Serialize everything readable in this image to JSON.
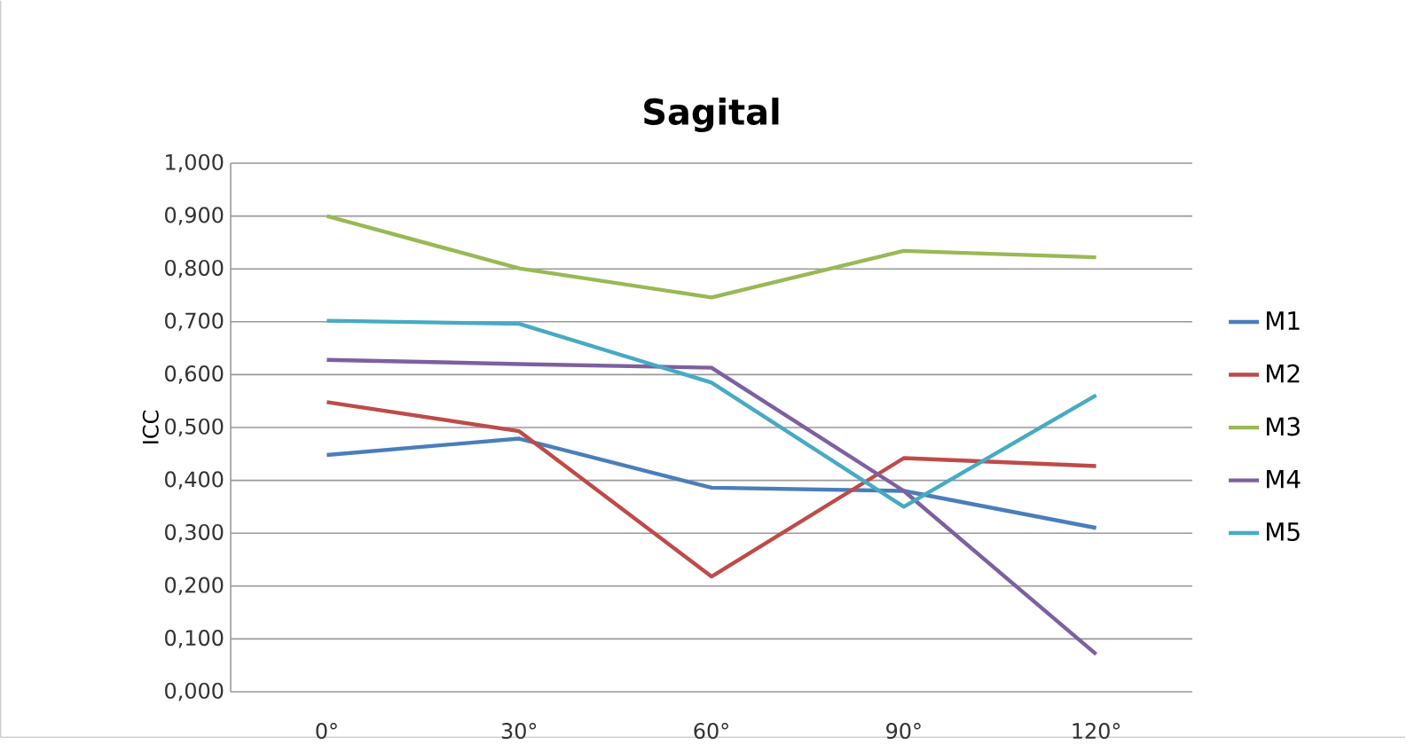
{
  "chart_data": {
    "type": "line",
    "title": "Sagital",
    "ylabel": "ICC",
    "categories": [
      "0°",
      "30°",
      "60°",
      "90°",
      "120°"
    ],
    "series": [
      {
        "name": "M1",
        "color": "#4a7ebb",
        "values": [
          0.448,
          0.479,
          0.386,
          0.38,
          0.31
        ]
      },
      {
        "name": "M2",
        "color": "#be4b48",
        "values": [
          0.548,
          0.493,
          0.218,
          0.442,
          0.427
        ]
      },
      {
        "name": "M3",
        "color": "#98b954",
        "values": [
          0.9,
          0.801,
          0.746,
          0.834,
          0.822
        ]
      },
      {
        "name": "M4",
        "color": "#7d60a0",
        "values": [
          0.628,
          0.62,
          0.613,
          0.38,
          0.071
        ]
      },
      {
        "name": "M5",
        "color": "#46aac5",
        "values": [
          0.702,
          0.696,
          0.585,
          0.35,
          0.561
        ]
      }
    ],
    "ylim": [
      0,
      1
    ],
    "yticks": [
      {
        "value": 0,
        "label": "0,000"
      },
      {
        "value": 0.1,
        "label": "0,100"
      },
      {
        "value": 0.2,
        "label": "0,200"
      },
      {
        "value": 0.3,
        "label": "0,300"
      },
      {
        "value": 0.4,
        "label": "0,400"
      },
      {
        "value": 0.5,
        "label": "0,500"
      },
      {
        "value": 0.6,
        "label": "0,600"
      },
      {
        "value": 0.7,
        "label": "0,700"
      },
      {
        "value": 0.8,
        "label": "0,800"
      },
      {
        "value": 0.9,
        "label": "0,900"
      },
      {
        "value": 1,
        "label": "1,000"
      }
    ],
    "grid": "y",
    "legend": "right",
    "marker": "none",
    "line_style": "solid"
  }
}
